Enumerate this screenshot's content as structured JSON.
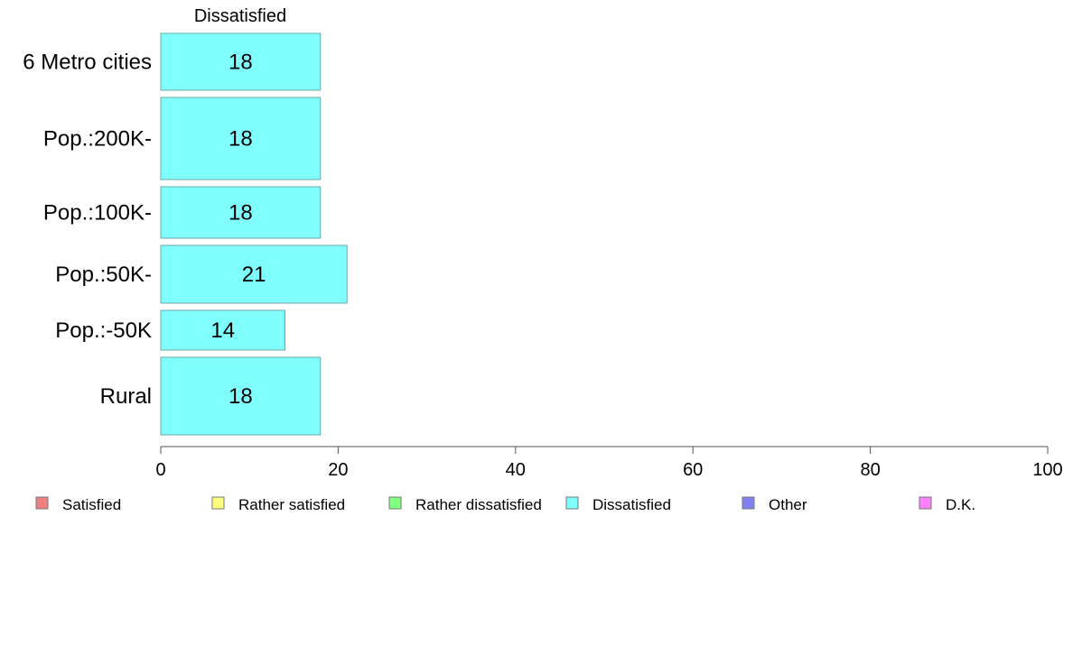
{
  "chart_data": {
    "type": "bar",
    "orientation": "horizontal",
    "column_header": "Dissatisfied",
    "categories": [
      "6 Metro cities",
      "Pop.:200K-",
      "Pop.:100K-",
      "Pop.:50K-",
      "Pop.:-50K",
      "Rural"
    ],
    "series": [
      {
        "name": "Dissatisfied",
        "values": [
          18,
          18,
          18,
          21,
          14,
          18
        ],
        "color": "#80ffff"
      }
    ],
    "xlim": [
      0,
      100
    ],
    "xticks": [
      0,
      20,
      40,
      60,
      80,
      100
    ],
    "grid": false,
    "legend_position": "bottom",
    "legend": [
      {
        "label": "Satisfied",
        "color": "#f08080"
      },
      {
        "label": "Rather satisfied",
        "color": "#ffff80"
      },
      {
        "label": "Rather dissatisfied",
        "color": "#80ff80"
      },
      {
        "label": "Dissatisfied",
        "color": "#80ffff"
      },
      {
        "label": "Other",
        "color": "#8080f0"
      },
      {
        "label": "D.K.",
        "color": "#ff80ff"
      }
    ]
  }
}
